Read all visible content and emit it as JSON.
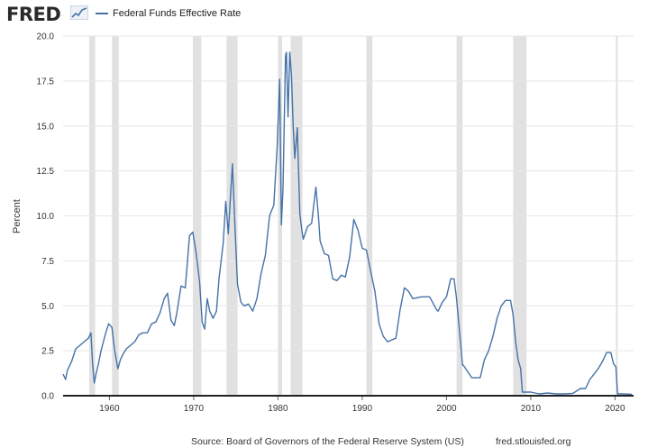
{
  "header": {
    "logo_text": "FRED",
    "logo_icon": "line-chart-icon"
  },
  "colors": {
    "series": "#4572a7",
    "recession": "#e1e1e1",
    "grid": "#e6e6e6"
  },
  "footer": {
    "source": "Source: Board of Governors of the Federal Reserve System (US)",
    "site": "fred.stlouisfed.org"
  },
  "chart_data": {
    "type": "line",
    "title": "",
    "xlabel": "",
    "ylabel": "Percent",
    "xlim": [
      1954.5,
      2022.2
    ],
    "ylim": [
      0,
      20
    ],
    "yticks": [
      "0.0",
      "2.5",
      "5.0",
      "7.5",
      "10.0",
      "12.5",
      "15.0",
      "17.5",
      "20.0"
    ],
    "xticks": [
      "1960",
      "1970",
      "1980",
      "1990",
      "2000",
      "2010",
      "2020"
    ],
    "grid": "horizontal",
    "legend_position": "top-left",
    "recessions": [
      [
        1957.6,
        1958.3
      ],
      [
        1960.3,
        1961.1
      ],
      [
        1969.9,
        1970.9
      ],
      [
        1973.9,
        1975.2
      ],
      [
        1980.0,
        1980.5
      ],
      [
        1981.5,
        1982.9
      ],
      [
        1990.5,
        1991.2
      ],
      [
        2001.2,
        2001.9
      ],
      [
        2007.9,
        2009.5
      ],
      [
        2020.1,
        2020.3
      ]
    ],
    "series": [
      {
        "name": "Federal Funds Effective Rate",
        "x": [
          1954.5,
          1954.8,
          1955.0,
          1955.5,
          1956.0,
          1956.5,
          1957.0,
          1957.5,
          1957.8,
          1958.0,
          1958.2,
          1958.4,
          1958.7,
          1959.0,
          1959.5,
          1959.9,
          1960.3,
          1960.6,
          1961.0,
          1961.3,
          1961.6,
          1962.0,
          1962.5,
          1963.0,
          1963.5,
          1964.0,
          1964.5,
          1965.0,
          1965.5,
          1966.0,
          1966.5,
          1966.9,
          1967.3,
          1967.7,
          1968.0,
          1968.5,
          1969.0,
          1969.5,
          1969.9,
          1970.3,
          1970.7,
          1971.0,
          1971.3,
          1971.6,
          1971.9,
          1972.3,
          1972.7,
          1973.0,
          1973.5,
          1973.8,
          1974.1,
          1974.6,
          1974.9,
          1975.2,
          1975.6,
          1976.0,
          1976.5,
          1977.0,
          1977.5,
          1978.0,
          1978.5,
          1979.0,
          1979.5,
          1979.9,
          1980.2,
          1980.4,
          1980.6,
          1980.9,
          1981.0,
          1981.2,
          1981.4,
          1981.6,
          1981.8,
          1982.0,
          1982.3,
          1982.6,
          1982.9,
          1983.0,
          1983.5,
          1984.0,
          1984.5,
          1984.8,
          1985.0,
          1985.5,
          1986.0,
          1986.5,
          1987.0,
          1987.5,
          1988.0,
          1988.5,
          1989.0,
          1989.5,
          1990.0,
          1990.5,
          1991.0,
          1991.5,
          1992.0,
          1992.5,
          1993.0,
          1994.0,
          1994.5,
          1995.0,
          1995.5,
          1996.0,
          1997.0,
          1998.0,
          1998.8,
          1999.0,
          1999.5,
          2000.0,
          2000.5,
          2000.9,
          2001.2,
          2001.5,
          2001.9,
          2002.0,
          2003.0,
          2003.5,
          2004.0,
          2004.5,
          2005.0,
          2005.5,
          2006.0,
          2006.5,
          2007.0,
          2007.6,
          2007.9,
          2008.2,
          2008.5,
          2008.8,
          2009.0,
          2010.0,
          2011.0,
          2012.0,
          2013.0,
          2014.0,
          2015.0,
          2015.9,
          2016.5,
          2017.0,
          2017.5,
          2018.0,
          2018.5,
          2019.0,
          2019.5,
          2019.8,
          2020.1,
          2020.3,
          2021.0,
          2022.0
        ],
        "values": [
          1.2,
          0.9,
          1.4,
          1.9,
          2.6,
          2.8,
          3.0,
          3.2,
          3.5,
          1.8,
          0.7,
          1.2,
          1.8,
          2.5,
          3.4,
          4.0,
          3.8,
          2.6,
          1.5,
          2.0,
          2.3,
          2.6,
          2.8,
          3.0,
          3.4,
          3.5,
          3.5,
          4.0,
          4.1,
          4.6,
          5.4,
          5.7,
          4.2,
          3.9,
          4.6,
          6.1,
          6.0,
          8.9,
          9.1,
          7.9,
          6.3,
          4.1,
          3.7,
          5.4,
          4.7,
          4.3,
          4.7,
          6.5,
          8.5,
          10.8,
          9.0,
          12.9,
          9.4,
          6.2,
          5.2,
          5.0,
          5.1,
          4.7,
          5.4,
          6.8,
          7.8,
          10.0,
          10.6,
          13.8,
          17.6,
          9.5,
          11.5,
          18.9,
          19.1,
          15.5,
          19.1,
          17.8,
          15.0,
          13.2,
          14.9,
          10.1,
          9.0,
          8.7,
          9.4,
          9.6,
          11.6,
          10.0,
          8.6,
          7.9,
          7.8,
          6.5,
          6.4,
          6.7,
          6.6,
          7.7,
          9.8,
          9.2,
          8.2,
          8.1,
          6.9,
          5.8,
          4.0,
          3.3,
          3.0,
          3.2,
          4.8,
          6.0,
          5.8,
          5.4,
          5.5,
          5.5,
          4.8,
          4.7,
          5.2,
          5.5,
          6.5,
          6.5,
          5.4,
          3.8,
          1.7,
          1.7,
          1.0,
          1.0,
          1.0,
          2.0,
          2.5,
          3.3,
          4.3,
          5.0,
          5.3,
          5.3,
          4.5,
          3.0,
          2.0,
          1.5,
          0.2,
          0.2,
          0.1,
          0.15,
          0.1,
          0.1,
          0.13,
          0.4,
          0.4,
          0.9,
          1.2,
          1.5,
          1.9,
          2.4,
          2.4,
          1.8,
          1.6,
          0.1,
          0.1,
          0.08
        ]
      }
    ]
  }
}
